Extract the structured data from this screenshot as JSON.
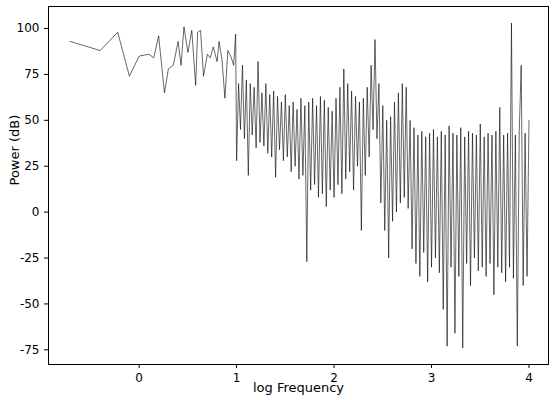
{
  "chart_data": {
    "type": "line",
    "x_label": "log Frequency",
    "y_label": "Power (dB)",
    "color": "#000000",
    "grid": false,
    "xlim": [
      -0.93,
      4.2
    ],
    "ylim": [
      -83,
      112
    ],
    "xticks": [
      0,
      1,
      2,
      3,
      4
    ],
    "yticks": [
      -75,
      -50,
      -25,
      0,
      25,
      50,
      75,
      100
    ],
    "x": [
      -0.71,
      -0.4,
      -0.22,
      -0.1,
      0.0,
      0.1,
      0.15,
      0.2,
      0.26,
      0.3,
      0.35,
      0.4,
      0.43,
      0.46,
      0.5,
      0.54,
      0.58,
      0.6,
      0.63,
      0.66,
      0.7,
      0.73,
      0.76,
      0.8,
      0.82,
      0.85,
      0.88,
      0.91,
      0.94,
      0.97,
      0.99,
      1.0,
      1.02,
      1.04,
      1.06,
      1.08,
      1.1,
      1.12,
      1.14,
      1.16,
      1.18,
      1.2,
      1.22,
      1.24,
      1.26,
      1.28,
      1.3,
      1.32,
      1.34,
      1.36,
      1.38,
      1.4,
      1.42,
      1.44,
      1.46,
      1.48,
      1.5,
      1.52,
      1.54,
      1.56,
      1.58,
      1.6,
      1.62,
      1.64,
      1.66,
      1.68,
      1.7,
      1.72,
      1.74,
      1.76,
      1.78,
      1.8,
      1.82,
      1.84,
      1.86,
      1.88,
      1.9,
      1.92,
      1.94,
      1.96,
      1.98,
      2.0,
      2.02,
      2.04,
      2.06,
      2.08,
      2.1,
      2.12,
      2.14,
      2.16,
      2.18,
      2.2,
      2.22,
      2.24,
      2.26,
      2.28,
      2.3,
      2.32,
      2.34,
      2.36,
      2.38,
      2.4,
      2.42,
      2.44,
      2.46,
      2.48,
      2.5,
      2.52,
      2.54,
      2.56,
      2.58,
      2.6,
      2.62,
      2.64,
      2.66,
      2.68,
      2.7,
      2.72,
      2.74,
      2.76,
      2.78,
      2.8,
      2.82,
      2.84,
      2.86,
      2.88,
      2.9,
      2.92,
      2.94,
      2.96,
      2.98,
      3.0,
      3.02,
      3.04,
      3.06,
      3.08,
      3.1,
      3.12,
      3.14,
      3.16,
      3.18,
      3.2,
      3.22,
      3.24,
      3.26,
      3.28,
      3.3,
      3.32,
      3.34,
      3.36,
      3.38,
      3.4,
      3.42,
      3.44,
      3.46,
      3.48,
      3.5,
      3.52,
      3.54,
      3.56,
      3.58,
      3.6,
      3.62,
      3.64,
      3.66,
      3.68,
      3.7,
      3.72,
      3.74,
      3.76,
      3.78,
      3.8,
      3.82,
      3.84,
      3.86,
      3.88,
      3.9,
      3.92,
      3.94,
      3.96,
      3.98,
      4.0
    ],
    "values": [
      93,
      88,
      98,
      74,
      85,
      86,
      84,
      96,
      65,
      78,
      80,
      93,
      80,
      101,
      87,
      99,
      69,
      98,
      99,
      74,
      86,
      84,
      90,
      82,
      93,
      83,
      62,
      88,
      85,
      80,
      97,
      28,
      70,
      45,
      80,
      40,
      72,
      20,
      70,
      42,
      68,
      35,
      82,
      38,
      65,
      36,
      70,
      32,
      64,
      30,
      66,
      19,
      63,
      34,
      60,
      28,
      64,
      30,
      58,
      22,
      60,
      25,
      56,
      18,
      62,
      20,
      58,
      -27,
      60,
      12,
      62,
      15,
      58,
      8,
      63,
      10,
      61,
      3,
      57,
      12,
      55,
      8,
      62,
      15,
      68,
      10,
      78,
      18,
      70,
      22,
      66,
      12,
      63,
      25,
      60,
      -10,
      62,
      20,
      68,
      30,
      80,
      45,
      94,
      40,
      70,
      5,
      58,
      -10,
      50,
      -25,
      52,
      -5,
      60,
      0,
      65,
      5,
      70,
      8,
      68,
      2,
      50,
      -20,
      46,
      -28,
      42,
      -35,
      44,
      -22,
      41,
      -38,
      43,
      -30,
      45,
      -25,
      41,
      -33,
      44,
      -53,
      42,
      -73,
      47,
      -30,
      43,
      -66,
      42,
      -35,
      46,
      -74,
      41,
      -28,
      44,
      -40,
      43,
      -25,
      42,
      -32,
      48,
      -30,
      41,
      -35,
      43,
      -28,
      42,
      -45,
      44,
      -30,
      57,
      -33,
      42,
      -38,
      43,
      -30,
      103,
      -36,
      42,
      -73,
      44,
      80,
      -40,
      43,
      -35,
      50
    ]
  }
}
